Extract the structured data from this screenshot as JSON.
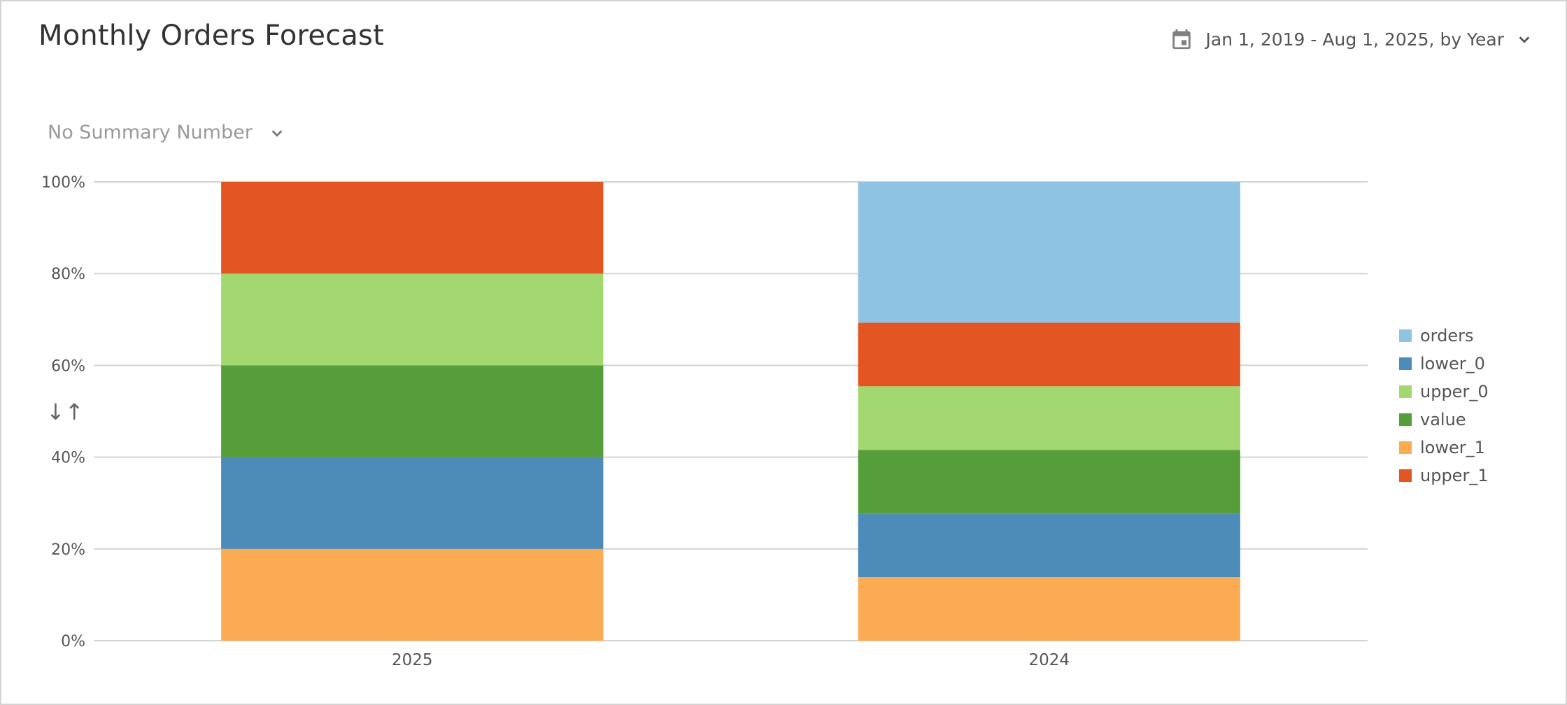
{
  "header": {
    "title": "Monthly Orders Forecast",
    "date_range": "Jan 1, 2019 - Aug 1, 2025, by Year",
    "calendar_icon": "calendar-icon",
    "dropdown_icon": "chevron-down-icon"
  },
  "summary": {
    "label": "No Summary Number",
    "dropdown_icon": "chevron-down-icon"
  },
  "sort_icon": {
    "glyph": "↓↑",
    "name": "sort-icon"
  },
  "colors": {
    "orders": "#8fc3e4",
    "lower_0": "#4d8cb9",
    "upper_0": "#a3d76f",
    "value": "#569e3a",
    "lower_1": "#fcab55",
    "upper_1": "#e35623",
    "grid": "#d3d3d3"
  },
  "chart_data": {
    "type": "bar",
    "stacked": true,
    "normalized": true,
    "categories": [
      "2025",
      "2024"
    ],
    "series": [
      {
        "name": "lower_1",
        "values": [
          20,
          14
        ]
      },
      {
        "name": "lower_0",
        "values": [
          20,
          14
        ]
      },
      {
        "name": "value",
        "values": [
          20,
          14
        ]
      },
      {
        "name": "upper_0",
        "values": [
          20,
          14
        ]
      },
      {
        "name": "upper_1",
        "values": [
          20,
          14
        ]
      },
      {
        "name": "orders",
        "values": [
          0,
          31
        ]
      }
    ],
    "ylim": [
      0,
      100
    ],
    "yticks": [
      "0%",
      "20%",
      "40%",
      "60%",
      "80%",
      "100%"
    ],
    "grid": true,
    "legend_position": "right",
    "legend_order": [
      "orders",
      "lower_0",
      "upper_0",
      "value",
      "lower_1",
      "upper_1"
    ]
  }
}
